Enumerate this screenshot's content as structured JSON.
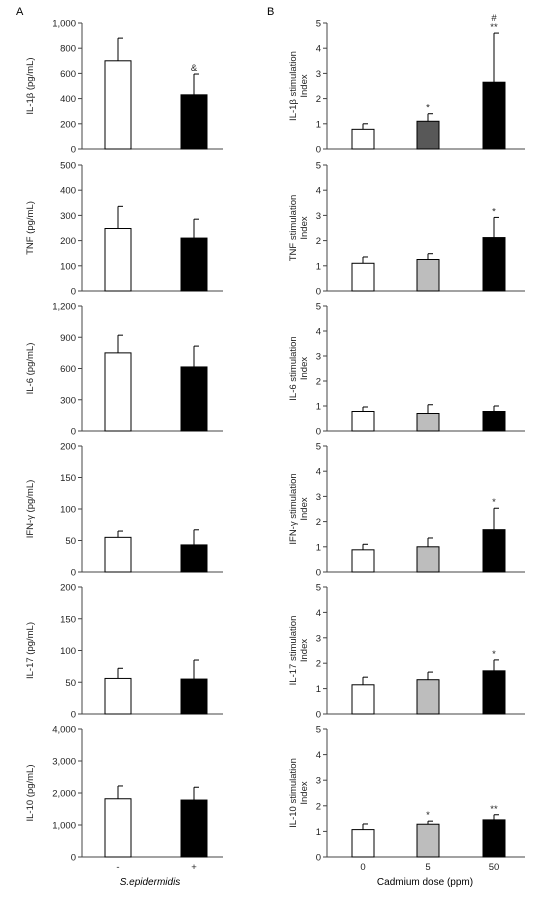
{
  "panel_labels": {
    "left": "A",
    "right": "B"
  },
  "left_xlabel": "S.epidermidis",
  "right_xlabel": "Cadmium dose (ppm)",
  "colors": {
    "white": "#ffffff",
    "dark": "#000000",
    "gray": "#bdbdbd",
    "darkgray": "#585858",
    "axis": "#444444"
  },
  "chart_data": [
    {
      "type": "bar",
      "id": "il1b-pgml",
      "ylabel": "IL-1β (pg/mL)",
      "ylim": [
        0,
        1000
      ],
      "yticks": [
        "0",
        "200",
        "400",
        "600",
        "800",
        "1,000"
      ],
      "yvals": [
        0,
        200,
        400,
        600,
        800,
        1000
      ],
      "categories": [
        "-",
        "+"
      ],
      "values": [
        700,
        430
      ],
      "errors": [
        180,
        165
      ],
      "fills": [
        "#ffffff",
        "#000000"
      ],
      "annotations": [
        "",
        "&"
      ]
    },
    {
      "type": "bar",
      "id": "tnf-pgml",
      "ylabel": "TNF (pg/mL)",
      "ylim": [
        0,
        500
      ],
      "yticks": [
        "0",
        "100",
        "200",
        "300",
        "400",
        "500"
      ],
      "yvals": [
        0,
        100,
        200,
        300,
        400,
        500
      ],
      "categories": [
        "-",
        "+"
      ],
      "values": [
        248,
        210
      ],
      "errors": [
        88,
        75
      ],
      "fills": [
        "#ffffff",
        "#000000"
      ],
      "annotations": [
        "",
        ""
      ]
    },
    {
      "type": "bar",
      "id": "il6-pgml",
      "ylabel": "IL-6 (pg/mL)",
      "ylim": [
        0,
        1200
      ],
      "yticks": [
        "0",
        "300",
        "600",
        "900",
        "1,200"
      ],
      "yvals": [
        0,
        300,
        600,
        900,
        1200
      ],
      "categories": [
        "-",
        "+"
      ],
      "values": [
        750,
        615
      ],
      "errors": [
        170,
        200
      ],
      "fills": [
        "#ffffff",
        "#000000"
      ],
      "annotations": [
        "",
        ""
      ]
    },
    {
      "type": "bar",
      "id": "ifng-pgml",
      "ylabel": "IFN-γ (pg/mL)",
      "ylim": [
        0,
        200
      ],
      "yticks": [
        "0",
        "50",
        "100",
        "150",
        "200"
      ],
      "yvals": [
        0,
        50,
        100,
        150,
        200
      ],
      "categories": [
        "-",
        "+"
      ],
      "values": [
        55,
        43
      ],
      "errors": [
        10,
        24
      ],
      "fills": [
        "#ffffff",
        "#000000"
      ],
      "annotations": [
        "",
        ""
      ]
    },
    {
      "type": "bar",
      "id": "il17-pgml",
      "ylabel": "IL-17 (pg/mL)",
      "ylim": [
        0,
        200
      ],
      "yticks": [
        "0",
        "50",
        "100",
        "150",
        "200"
      ],
      "yvals": [
        0,
        50,
        100,
        150,
        200
      ],
      "categories": [
        "-",
        "+"
      ],
      "values": [
        56,
        55
      ],
      "errors": [
        16,
        30
      ],
      "fills": [
        "#ffffff",
        "#000000"
      ],
      "annotations": [
        "",
        ""
      ]
    },
    {
      "type": "bar",
      "id": "il10-pgml",
      "ylabel": "IL-10 (pg/mL)",
      "ylim": [
        0,
        4000
      ],
      "yticks": [
        "0",
        "1,000",
        "2,000",
        "3,000",
        "4,000"
      ],
      "yvals": [
        0,
        1000,
        2000,
        3000,
        4000
      ],
      "categories": [
        "-",
        "+"
      ],
      "values": [
        1820,
        1780
      ],
      "errors": [
        400,
        400
      ],
      "fills": [
        "#ffffff",
        "#000000"
      ],
      "annotations": [
        "",
        ""
      ]
    },
    {
      "type": "bar",
      "id": "il1b-si",
      "ylabel": "IL-1β stimulation Index",
      "ylim": [
        0,
        5
      ],
      "yticks": [
        "0",
        "1",
        "2",
        "3",
        "4",
        "5"
      ],
      "yvals": [
        0,
        1,
        2,
        3,
        4,
        5
      ],
      "categories": [
        "0",
        "5",
        "50"
      ],
      "values": [
        0.78,
        1.1,
        2.65
      ],
      "errors": [
        0.22,
        0.3,
        1.95
      ],
      "fills": [
        "#ffffff",
        "#585858",
        "#000000"
      ],
      "annotations": [
        "",
        "*",
        "#\n**"
      ]
    },
    {
      "type": "bar",
      "id": "tnf-si",
      "ylabel": "TNF stimulation Index",
      "ylim": [
        0,
        5
      ],
      "yticks": [
        "0",
        "1",
        "2",
        "3",
        "4",
        "5"
      ],
      "yvals": [
        0,
        1,
        2,
        3,
        4,
        5
      ],
      "categories": [
        "0",
        "5",
        "50"
      ],
      "values": [
        1.1,
        1.25,
        2.12
      ],
      "errors": [
        0.25,
        0.23,
        0.8
      ],
      "fills": [
        "#ffffff",
        "#bdbdbd",
        "#000000"
      ],
      "annotations": [
        "",
        "",
        "*"
      ]
    },
    {
      "type": "bar",
      "id": "il6-si",
      "ylabel": "IL-6 stimulation Index",
      "ylim": [
        0,
        5
      ],
      "yticks": [
        "0",
        "1",
        "2",
        "3",
        "4",
        "5"
      ],
      "yvals": [
        0,
        1,
        2,
        3,
        4,
        5
      ],
      "categories": [
        "0",
        "5",
        "50"
      ],
      "values": [
        0.78,
        0.7,
        0.78
      ],
      "errors": [
        0.18,
        0.35,
        0.22
      ],
      "fills": [
        "#ffffff",
        "#bdbdbd",
        "#000000"
      ],
      "annotations": [
        "",
        "",
        ""
      ]
    },
    {
      "type": "bar",
      "id": "ifng-si",
      "ylabel": "IFN-γ stimulation Index",
      "ylim": [
        0,
        5
      ],
      "yticks": [
        "0",
        "1",
        "2",
        "3",
        "4",
        "5"
      ],
      "yvals": [
        0,
        1,
        2,
        3,
        4,
        5
      ],
      "categories": [
        "0",
        "5",
        "50"
      ],
      "values": [
        0.88,
        1.0,
        1.68
      ],
      "errors": [
        0.22,
        0.35,
        0.85
      ],
      "fills": [
        "#ffffff",
        "#bdbdbd",
        "#000000"
      ],
      "annotations": [
        "",
        "",
        "*"
      ]
    },
    {
      "type": "bar",
      "id": "il17-si",
      "ylabel": "IL-17 stimulation Index",
      "ylim": [
        0,
        5
      ],
      "yticks": [
        "0",
        "1",
        "2",
        "3",
        "4",
        "5"
      ],
      "yvals": [
        0,
        1,
        2,
        3,
        4,
        5
      ],
      "categories": [
        "0",
        "5",
        "50"
      ],
      "values": [
        1.15,
        1.35,
        1.7
      ],
      "errors": [
        0.3,
        0.3,
        0.43
      ],
      "fills": [
        "#ffffff",
        "#bdbdbd",
        "#000000"
      ],
      "annotations": [
        "",
        "",
        "*"
      ]
    },
    {
      "type": "bar",
      "id": "il10-si",
      "ylabel": "IL-10 stimulation Index",
      "ylim": [
        0,
        5
      ],
      "yticks": [
        "0",
        "1",
        "2",
        "3",
        "4",
        "5"
      ],
      "yvals": [
        0,
        1,
        2,
        3,
        4,
        5
      ],
      "categories": [
        "0",
        "5",
        "50"
      ],
      "values": [
        1.07,
        1.28,
        1.45
      ],
      "errors": [
        0.22,
        0.12,
        0.2
      ],
      "fills": [
        "#ffffff",
        "#bdbdbd",
        "#000000"
      ],
      "annotations": [
        "",
        "*",
        "**"
      ]
    }
  ]
}
